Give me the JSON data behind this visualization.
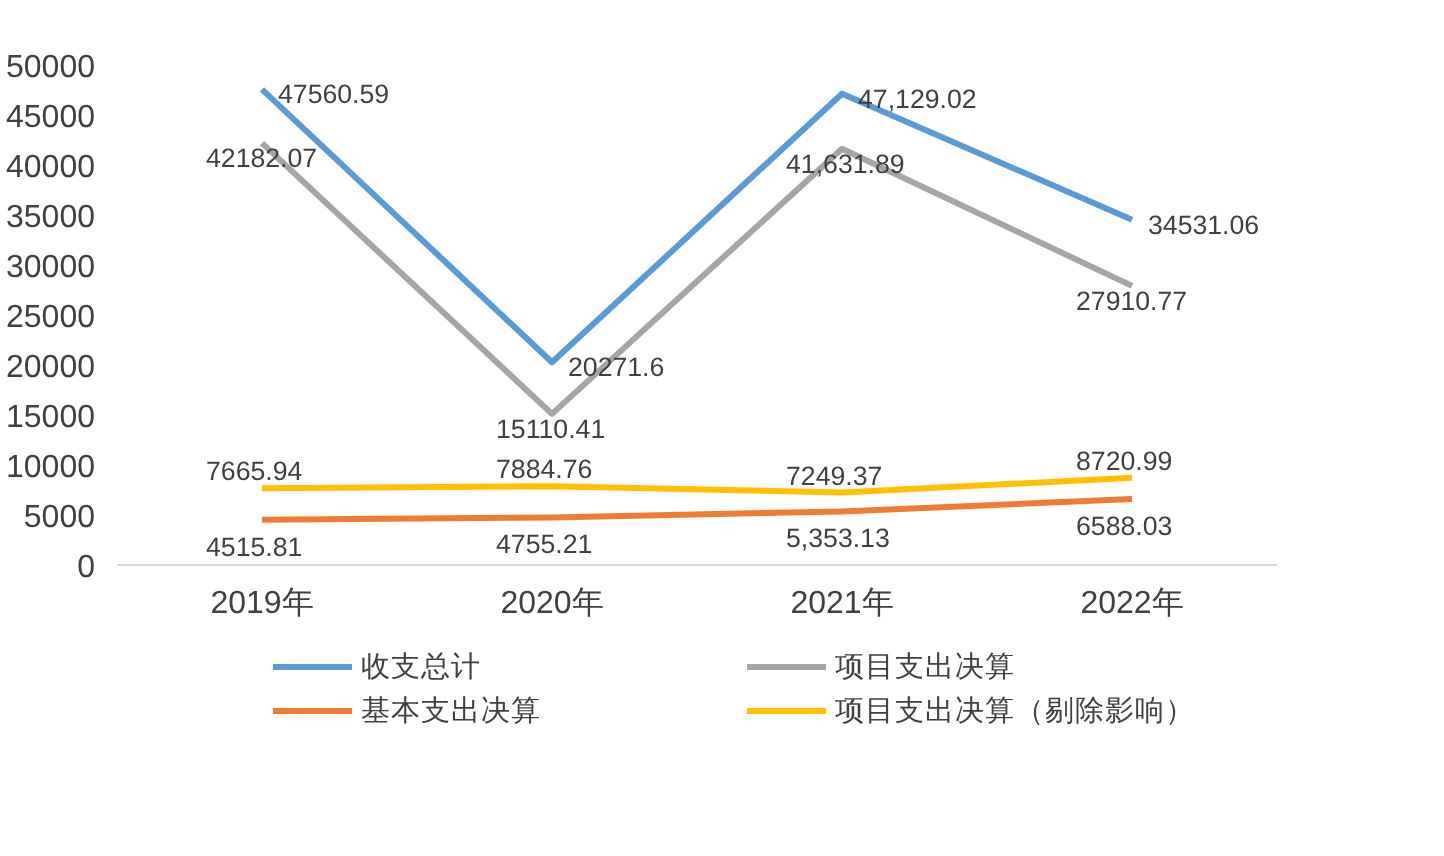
{
  "chart_data": {
    "type": "line",
    "categories": [
      "2019年",
      "2020年",
      "2021年",
      "2022年"
    ],
    "series": [
      {
        "name": "收支总计",
        "color": "#5b9bd5",
        "values": [
          47560.59,
          20271.6,
          47129.02,
          34531.06
        ],
        "value_labels": [
          "47560.59",
          "20271.6",
          "47,129.02",
          "34531.06"
        ]
      },
      {
        "name": "基本支出决算",
        "color": "#ed7d31",
        "values": [
          4515.81,
          4755.21,
          5353.13,
          6588.03
        ],
        "value_labels": [
          "4515.81",
          "4755.21",
          "5,353.13",
          "6588.03"
        ]
      },
      {
        "name": "项目支出决算",
        "color": "#a5a5a5",
        "values": [
          42182.07,
          15110.41,
          41631.89,
          27910.77
        ],
        "value_labels": [
          "42182.07",
          "15110.41",
          "41,631.89",
          "27910.77"
        ]
      },
      {
        "name": "项目支出决算（剔除影响）",
        "color": "#ffc000",
        "values": [
          7665.94,
          7884.76,
          7249.37,
          8720.99
        ],
        "value_labels": [
          "7665.94",
          "7884.76",
          "7249.37",
          "8720.99"
        ]
      }
    ],
    "ylim": [
      0,
      50000
    ],
    "yticks": [
      0,
      5000,
      10000,
      15000,
      20000,
      25000,
      30000,
      35000,
      40000,
      45000,
      50000
    ],
    "grid": false,
    "legend": "bottom",
    "marker": "none",
    "line_style": "solid"
  }
}
